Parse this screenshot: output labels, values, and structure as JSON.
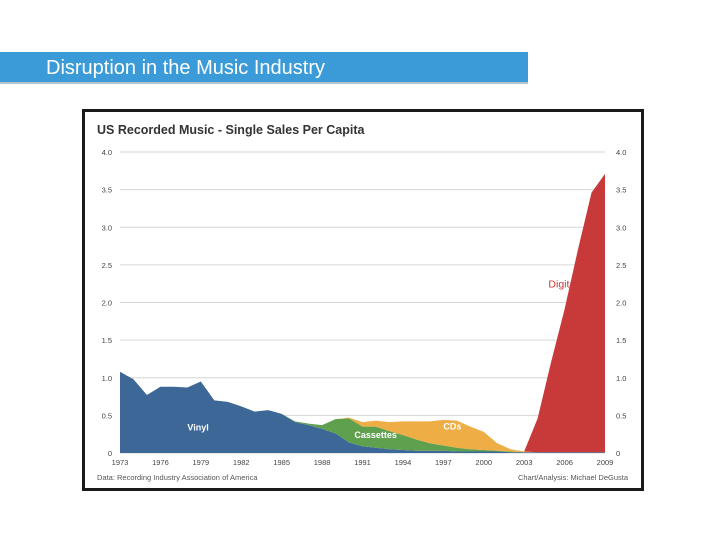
{
  "slide": {
    "title": "Disruption in the Music Industry"
  },
  "chart_data": {
    "type": "area",
    "stacked": true,
    "title": "US Recorded Music - Single Sales Per Capita",
    "source": "Data: Recording Industry Association of America",
    "credit": "Chart/Analysis: Michael DeGusta",
    "xlabel": "",
    "ylabel": "",
    "xlim": [
      1973,
      2009
    ],
    "ylim": [
      0,
      4.0
    ],
    "x_ticks": [
      "1973",
      "1976",
      "1979",
      "1982",
      "1985",
      "1988",
      "1991",
      "1994",
      "1997",
      "2000",
      "2003",
      "2006",
      "2009"
    ],
    "y_ticks": [
      "0",
      "0.5",
      "1.0",
      "1.5",
      "2.0",
      "2.5",
      "3.0",
      "3.5",
      "4.0"
    ],
    "grid": true,
    "legend": "inline labels",
    "x": [
      1973,
      1974,
      1975,
      1976,
      1977,
      1978,
      1979,
      1980,
      1981,
      1982,
      1983,
      1984,
      1985,
      1986,
      1987,
      1988,
      1989,
      1990,
      1991,
      1992,
      1993,
      1994,
      1995,
      1996,
      1997,
      1998,
      1999,
      2000,
      2001,
      2002,
      2003,
      2004,
      2005,
      2006,
      2007,
      2008,
      2009
    ],
    "series": [
      {
        "name": "Vinyl",
        "color": "#3c6797",
        "values": [
          1.08,
          0.98,
          0.77,
          0.88,
          0.88,
          0.87,
          0.95,
          0.7,
          0.68,
          0.62,
          0.55,
          0.57,
          0.52,
          0.41,
          0.37,
          0.32,
          0.26,
          0.14,
          0.09,
          0.07,
          0.05,
          0.04,
          0.03,
          0.03,
          0.03,
          0.02,
          0.02,
          0.02,
          0.02,
          0.01,
          0.01,
          0.01,
          0.01,
          0.01,
          0.01,
          0.01,
          0.01
        ]
      },
      {
        "name": "Cassettes",
        "color": "#5fa04f",
        "values": [
          0,
          0,
          0,
          0,
          0,
          0,
          0,
          0,
          0,
          0,
          0,
          0,
          0,
          0.01,
          0.02,
          0.05,
          0.19,
          0.32,
          0.26,
          0.28,
          0.24,
          0.2,
          0.15,
          0.1,
          0.07,
          0.05,
          0.03,
          0.02,
          0.01,
          0.01,
          0,
          0,
          0,
          0,
          0,
          0,
          0
        ]
      },
      {
        "name": "CDs",
        "color": "#eeae45",
        "values": [
          0,
          0,
          0,
          0,
          0,
          0,
          0,
          0,
          0,
          0,
          0,
          0,
          0,
          0,
          0,
          0,
          0,
          0.01,
          0.06,
          0.08,
          0.12,
          0.18,
          0.24,
          0.29,
          0.34,
          0.36,
          0.3,
          0.24,
          0.1,
          0.03,
          0.01,
          0,
          0,
          0,
          0,
          0,
          0
        ]
      },
      {
        "name": "Digital",
        "color": "#c8393a",
        "values": [
          0,
          0,
          0,
          0,
          0,
          0,
          0,
          0,
          0,
          0,
          0,
          0,
          0,
          0,
          0,
          0,
          0,
          0,
          0,
          0,
          0,
          0,
          0,
          0,
          0,
          0,
          0,
          0,
          0,
          0,
          0,
          0.45,
          1.2,
          1.9,
          2.7,
          3.45,
          3.7
        ]
      }
    ],
    "annotations": [
      {
        "text": "Vinyl",
        "series": "Vinyl",
        "x": 1978,
        "y": 0.3
      },
      {
        "text": "Cassettes",
        "series": "Cassettes",
        "x": 1990.4,
        "y": 0.2
      },
      {
        "text": "CDs",
        "series": "CDs",
        "x": 1997,
        "y": 0.31
      },
      {
        "text": "Digital",
        "series": "Digital",
        "x": 2004.8,
        "y": 2.2
      }
    ],
    "colors": {
      "grid": "#d6d6d6",
      "tick_text": "#444444",
      "title_text": "#333333",
      "frame": "#1a1a1a"
    }
  }
}
